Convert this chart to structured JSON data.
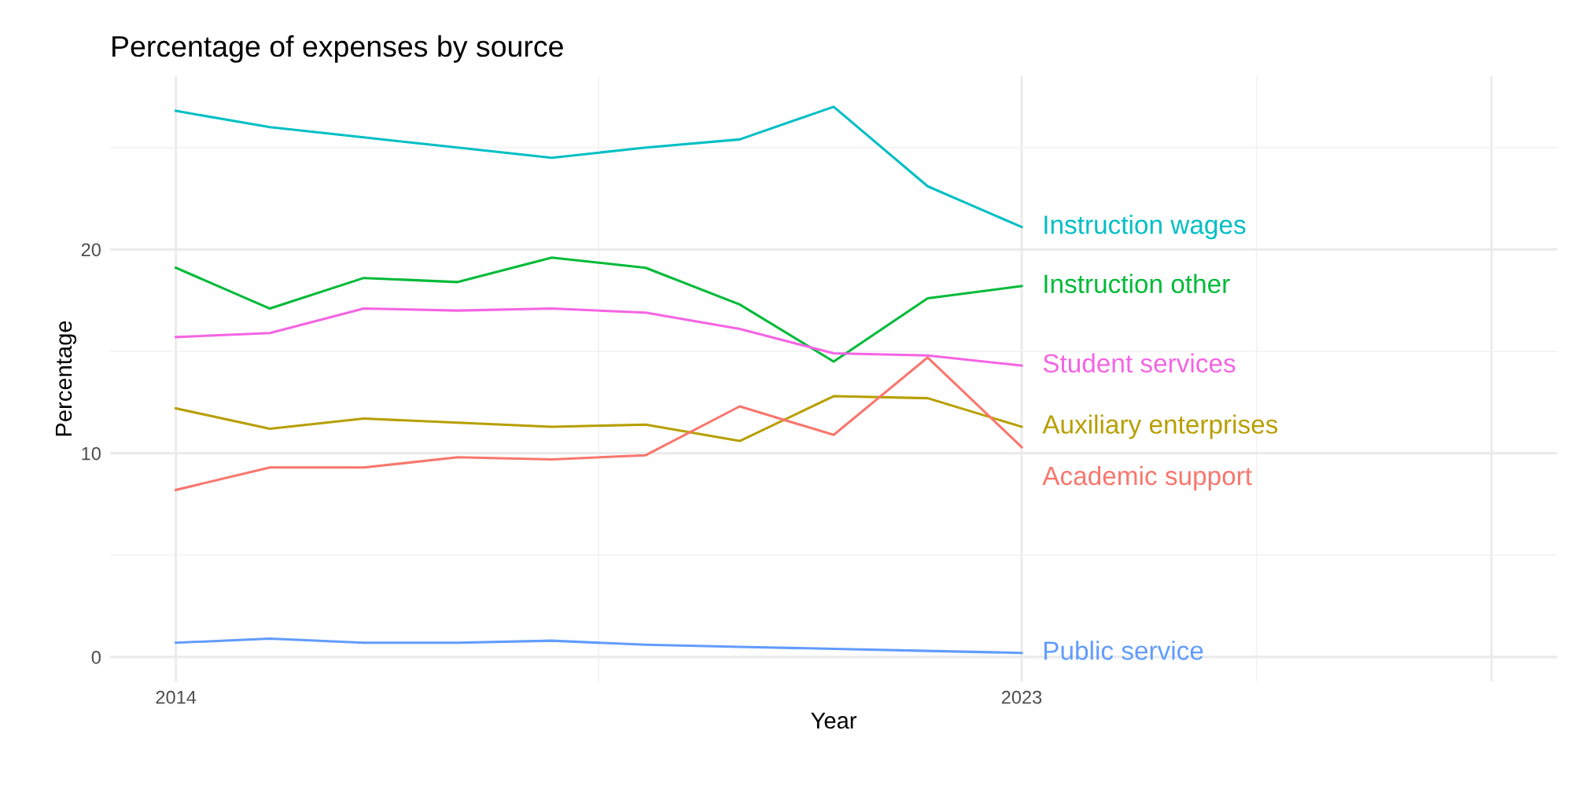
{
  "chart_data": {
    "type": "line",
    "title": "Percentage of expenses by source",
    "xlabel": "Year",
    "ylabel": "Percentage",
    "x": [
      2014,
      2015,
      2016,
      2017,
      2018,
      2019,
      2020,
      2021,
      2022,
      2023
    ],
    "series": [
      {
        "name": "Instruction wages",
        "color": "#00bfc4",
        "values": [
          26.8,
          26.0,
          25.5,
          25.0,
          24.5,
          25.0,
          25.4,
          27.0,
          23.1,
          21.1
        ]
      },
      {
        "name": "Instruction other",
        "color": "#00ba38",
        "values": [
          19.1,
          17.1,
          18.6,
          18.4,
          19.6,
          19.1,
          17.3,
          14.5,
          17.6,
          18.2
        ]
      },
      {
        "name": "Student services",
        "color": "#f564e3",
        "values": [
          15.7,
          15.9,
          17.1,
          17.0,
          17.1,
          16.9,
          16.1,
          14.9,
          14.8,
          14.3
        ]
      },
      {
        "name": "Auxiliary enterprises",
        "color": "#b79f00",
        "values": [
          12.2,
          11.2,
          11.7,
          11.5,
          11.3,
          11.4,
          10.6,
          12.8,
          12.7,
          11.3
        ]
      },
      {
        "name": "Academic support",
        "color": "#f8766d",
        "values": [
          8.2,
          9.3,
          9.3,
          9.8,
          9.7,
          9.9,
          12.3,
          10.9,
          14.7,
          10.3
        ]
      },
      {
        "name": "Public service",
        "color": "#619cff",
        "values": [
          0.7,
          0.9,
          0.7,
          0.7,
          0.8,
          0.6,
          0.5,
          0.4,
          0.3,
          0.2
        ]
      }
    ],
    "xlim": [
      2013.3,
      2028.7
    ],
    "xticks": [
      2014,
      2023,
      {
        "value": 2028,
        "label": null
      }
    ],
    "ylim": [
      -1.2,
      28.5
    ],
    "yticks": [
      0,
      10,
      20
    ],
    "grid": true,
    "legend": false,
    "line_style": "solid",
    "marker": "none"
  }
}
